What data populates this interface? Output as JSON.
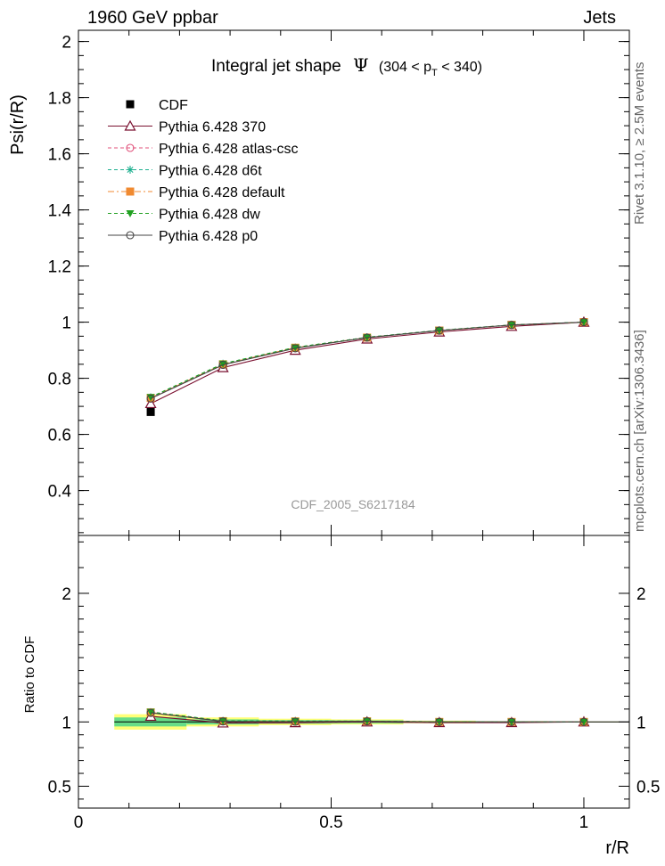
{
  "header": {
    "left_label": "1960 GeV ppbar",
    "right_label": "Jets",
    "side_label_top": "Rivet 3.1.10, ≥ 2.5M events",
    "side_label_bottom": "mcplots.cern.ch [arXiv:1306.3436]",
    "watermark": "CDF_2005_S6217184"
  },
  "chart_data": [
    {
      "type": "line",
      "title_main": "Integral jet shape",
      "title_symbol": "Ψ",
      "title_range": "(304 < p",
      "title_range_sub": "T",
      "title_range_end": " < 340)",
      "ylabel": "Psi(r/R)",
      "xlim": [
        0,
        1.09
      ],
      "ylim": [
        0.24,
        2.04
      ],
      "yticks": [
        0.4,
        0.6,
        0.8,
        1,
        1.2,
        1.4,
        1.6,
        1.8,
        2
      ],
      "ytick_labels": [
        "0.4",
        "0.6",
        "0.8",
        "1",
        "1.2",
        "1.4",
        "1.6",
        "1.8",
        "2"
      ],
      "legend_position": "top-left",
      "x": [
        0.143,
        0.286,
        0.429,
        0.571,
        0.714,
        0.857,
        1.0
      ],
      "series": [
        {
          "name": "CDF",
          "marker": "square-filled",
          "color": "#000000",
          "line": "none",
          "values": [
            0.68,
            0.845,
            0.905,
            0.94,
            0.97,
            0.99,
            1.0
          ]
        },
        {
          "name": "Pythia 6.428 370",
          "marker": "triangle-open",
          "color": "#7a1030",
          "line": "solid",
          "values": [
            0.71,
            0.838,
            0.9,
            0.94,
            0.965,
            0.985,
            1.0
          ]
        },
        {
          "name": "Pythia 6.428 atlas-csc",
          "marker": "circle-open",
          "color": "#e0507a",
          "line": "dashed",
          "values": [
            0.728,
            0.848,
            0.908,
            0.945,
            0.97,
            0.99,
            1.0
          ]
        },
        {
          "name": "Pythia 6.428 d6t",
          "marker": "star",
          "color": "#20b090",
          "line": "dashed",
          "values": [
            0.732,
            0.852,
            0.91,
            0.946,
            0.971,
            0.99,
            1.0
          ]
        },
        {
          "name": "Pythia 6.428 default",
          "marker": "square-filled",
          "color": "#f08a30",
          "line": "dashdot",
          "values": [
            0.73,
            0.85,
            0.909,
            0.945,
            0.97,
            0.99,
            1.0
          ]
        },
        {
          "name": "Pythia 6.428 dw",
          "marker": "triangle-down-filled",
          "color": "#20a020",
          "line": "dashed",
          "values": [
            0.733,
            0.852,
            0.91,
            0.946,
            0.971,
            0.99,
            1.0
          ]
        },
        {
          "name": "Pythia 6.428 p0",
          "marker": "circle-open",
          "color": "#444444",
          "line": "solid",
          "values": [
            0.728,
            0.848,
            0.907,
            0.945,
            0.97,
            0.99,
            1.0
          ]
        }
      ]
    },
    {
      "type": "line",
      "ylabel": "Ratio to CDF",
      "xlabel": "r/R",
      "xlim": [
        0,
        1.09
      ],
      "xticks": [
        0,
        0.5,
        1
      ],
      "xtick_labels": [
        "0",
        "0.5",
        "1"
      ],
      "ylim": [
        0.33,
        2.45
      ],
      "yticks": [
        0.5,
        1,
        2
      ],
      "ytick_labels": [
        "0.5",
        "1",
        "2"
      ],
      "x": [
        0.143,
        0.286,
        0.429,
        0.571,
        0.714,
        0.857,
        1.0
      ],
      "bands": {
        "bin_edges": [
          0.071,
          0.214,
          0.357,
          0.5,
          0.643,
          0.786,
          0.929,
          1.071
        ],
        "inner_half_width": [
          0.035,
          0.02,
          0.014,
          0.012,
          0.006,
          0.004,
          0.002
        ],
        "outer_half_width": [
          0.06,
          0.035,
          0.025,
          0.02,
          0.01,
          0.006,
          0.003
        ],
        "inner_color": "#66dd88",
        "outer_color": "#ffff77"
      },
      "series": [
        {
          "name": "Pythia 6.428 370",
          "marker": "triangle-open",
          "color": "#7a1030",
          "line": "solid",
          "values": [
            1.044,
            0.992,
            0.994,
            1.0,
            0.995,
            0.995,
            1.0
          ]
        },
        {
          "name": "Pythia 6.428 atlas-csc",
          "marker": "circle-open",
          "color": "#e0507a",
          "line": "dashed",
          "values": [
            1.071,
            1.004,
            1.003,
            1.005,
            1.0,
            1.0,
            1.0
          ]
        },
        {
          "name": "Pythia 6.428 d6t",
          "marker": "star",
          "color": "#20b090",
          "line": "dashed",
          "values": [
            1.076,
            1.008,
            1.006,
            1.006,
            1.001,
            1.0,
            1.0
          ]
        },
        {
          "name": "Pythia 6.428 default",
          "marker": "square-filled",
          "color": "#f08a30",
          "line": "dashdot",
          "values": [
            1.074,
            1.006,
            1.004,
            1.005,
            1.0,
            1.0,
            1.0
          ]
        },
        {
          "name": "Pythia 6.428 dw",
          "marker": "triangle-down-filled",
          "color": "#20a020",
          "line": "dashed",
          "values": [
            1.078,
            1.008,
            1.006,
            1.006,
            1.001,
            1.0,
            1.0
          ]
        },
        {
          "name": "Pythia 6.428 p0",
          "marker": "circle-open",
          "color": "#444444",
          "line": "solid",
          "values": [
            1.071,
            1.004,
            1.002,
            1.005,
            1.0,
            1.0,
            1.0
          ]
        }
      ]
    }
  ]
}
